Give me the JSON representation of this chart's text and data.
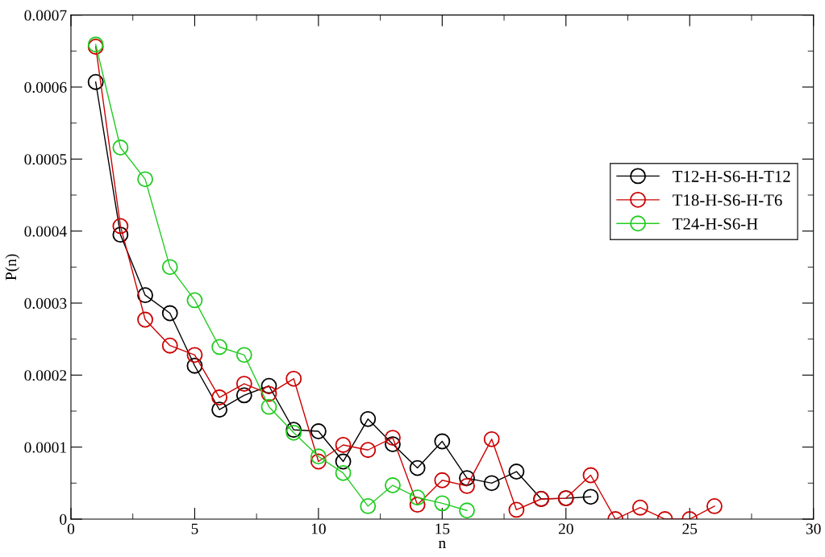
{
  "chart_data": {
    "type": "line",
    "xlabel": "n",
    "ylabel": "P(n)",
    "xlim": [
      0,
      30
    ],
    "ylim": [
      0,
      0.0007
    ],
    "xticks": [
      0,
      5,
      10,
      15,
      20,
      25,
      30
    ],
    "yticks": [
      0,
      0.0001,
      0.0002,
      0.0003,
      0.0004,
      0.0005,
      0.0006,
      0.0007
    ],
    "marker": "circle",
    "grid": false,
    "legend": "right",
    "series": [
      {
        "name": "T12-H-S6-H-T12",
        "color": "#000000",
        "x": [
          1,
          2,
          3,
          4,
          5,
          6,
          7,
          8,
          9,
          10,
          11,
          12,
          13,
          14,
          15,
          16,
          17,
          18,
          19,
          20,
          21
        ],
        "values": [
          0.000607,
          0.000395,
          0.000311,
          0.000286,
          0.000213,
          0.000152,
          0.000172,
          0.000185,
          0.000124,
          0.000122,
          8e-05,
          0.000139,
          0.000104,
          7.1e-05,
          0.000108,
          5.7e-05,
          5e-05,
          6.6e-05,
          2.8e-05,
          2.9e-05,
          3.1e-05
        ]
      },
      {
        "name": "T18-H-S6-H-T6",
        "color": "#cc0000",
        "x": [
          1,
          2,
          3,
          4,
          5,
          6,
          7,
          8,
          9,
          10,
          11,
          12,
          13,
          14,
          15,
          16,
          17,
          18,
          19,
          20,
          21,
          22,
          23,
          24,
          25,
          26
        ],
        "values": [
          0.000656,
          0.000407,
          0.000277,
          0.000241,
          0.000228,
          0.000169,
          0.000188,
          0.000174,
          0.000195,
          8e-05,
          0.000103,
          9.6e-05,
          0.000113,
          2e-05,
          5.4e-05,
          4.6e-05,
          0.000111,
          1.3e-05,
          2.8e-05,
          2.9e-05,
          6.1e-05,
          0,
          1.6e-05,
          0,
          0,
          1.8e-05
        ]
      },
      {
        "name": "T24-H-S6-H",
        "color": "#22cc22",
        "x": [
          1,
          2,
          3,
          4,
          5,
          6,
          7,
          8,
          9,
          10,
          11,
          12,
          13,
          14,
          15,
          16
        ],
        "values": [
          0.000659,
          0.000516,
          0.000472,
          0.00035,
          0.000304,
          0.000239,
          0.000228,
          0.000156,
          0.00012,
          8.7e-05,
          6.4e-05,
          1.8e-05,
          4.7e-05,
          3e-05,
          2.2e-05,
          1.2e-05
        ]
      }
    ]
  }
}
